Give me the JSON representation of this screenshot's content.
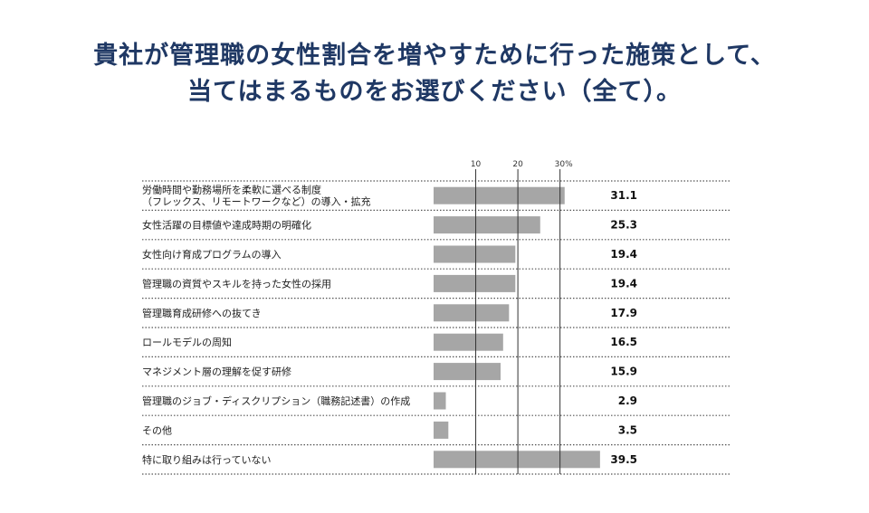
{
  "title": {
    "line1": "貴社が管理職の女性割合を増やすために行った施策として、",
    "line2": "当てはまるものをお選びください（全て）。"
  },
  "chart_data": {
    "type": "bar",
    "orientation": "horizontal",
    "categories": [
      [
        "労働時間や勤務場所を柔軟に選べる制度",
        "（フレックス、リモートワークなど）の導入・拡充"
      ],
      [
        "女性活躍の目標値や達成時期の明確化"
      ],
      [
        "女性向け育成プログラムの導入"
      ],
      [
        "管理職の資質やスキルを持った女性の採用"
      ],
      [
        "管理職育成研修への抜てき"
      ],
      [
        "ロールモデルの周知"
      ],
      [
        "マネジメント層の理解を促す研修"
      ],
      [
        "管理職のジョブ・ディスクリプション（職務記述書）の作成"
      ],
      [
        "その他"
      ],
      [
        "特に取り組みは行っていない"
      ]
    ],
    "values": [
      31.1,
      25.3,
      19.4,
      19.4,
      17.9,
      16.5,
      15.9,
      2.9,
      3.5,
      39.5
    ],
    "value_labels": [
      "31.1",
      "25.3",
      "19.4",
      "19.4",
      "17.9",
      "16.5",
      "15.9",
      "2.9",
      "3.5",
      "39.5"
    ],
    "ticks": [
      10,
      20,
      30
    ],
    "tick_labels": [
      "10",
      "20",
      "30%"
    ],
    "xlim": [
      0,
      40
    ],
    "unit": "%",
    "bar_color": "#a6a6a6",
    "grid": true
  }
}
